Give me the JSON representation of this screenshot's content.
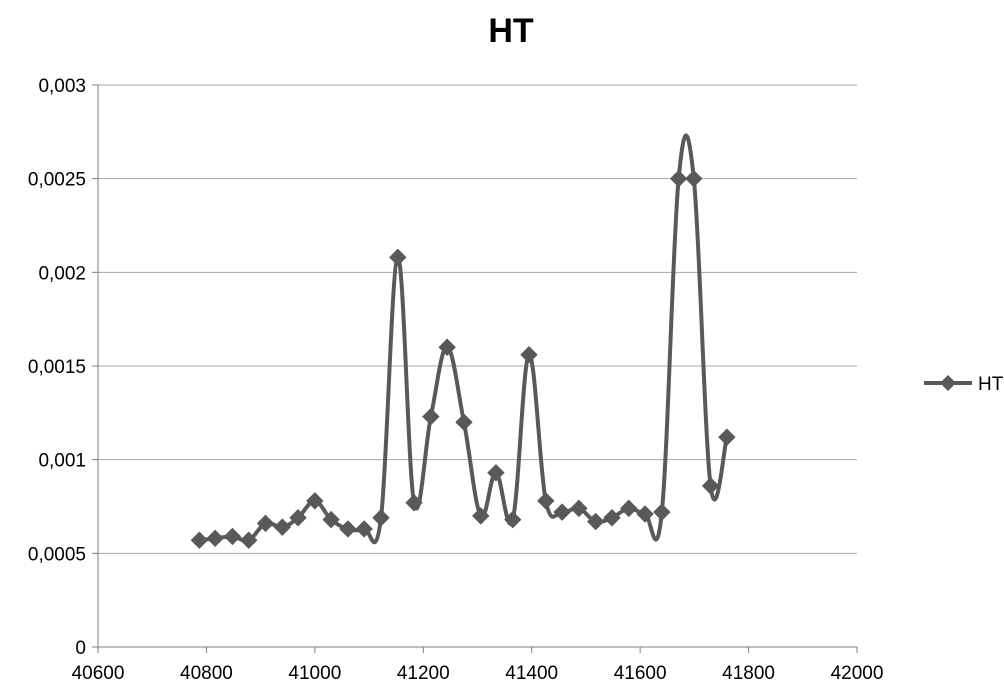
{
  "chart_data": {
    "type": "line",
    "title": "HT",
    "xlabel": "",
    "ylabel": "",
    "xlim": [
      40600,
      42000
    ],
    "ylim": [
      0,
      0.003
    ],
    "x_ticks": [
      40600,
      40800,
      41000,
      41200,
      41400,
      41600,
      41800,
      42000
    ],
    "x_tick_labels": [
      "40600",
      "40800",
      "41000",
      "41200",
      "41400",
      "41600",
      "41800",
      "42000"
    ],
    "y_ticks": [
      0,
      0.0005,
      0.001,
      0.0015,
      0.002,
      0.0025,
      0.003
    ],
    "y_tick_labels": [
      "0",
      "0,0005",
      "0,001",
      "0,0015",
      "0,002",
      "0,0025",
      "0,003"
    ],
    "grid": "horizontal",
    "legend": "right",
    "colors": {
      "series": "#595959",
      "grid": "#a6a6a6",
      "axis": "#7f7f7f"
    },
    "series": [
      {
        "name": "HT",
        "marker": "diamond",
        "smooth": true,
        "x": [
          40787,
          40816,
          40848,
          40878,
          40909,
          40940,
          40969,
          41000,
          41030,
          41061,
          41091,
          41122,
          41153,
          41183,
          41214,
          41244,
          41275,
          41306,
          41334,
          41365,
          41395,
          41426,
          41456,
          41487,
          41518,
          41548,
          41579,
          41609,
          41640,
          41671,
          41699,
          41730,
          41760
        ],
        "y": [
          0.00057,
          0.00058,
          0.00059,
          0.00057,
          0.00066,
          0.00064,
          0.00069,
          0.00078,
          0.00068,
          0.00063,
          0.00063,
          0.00069,
          0.00208,
          0.00077,
          0.00123,
          0.0016,
          0.0012,
          0.0007,
          0.00093,
          0.00068,
          0.00156,
          0.00078,
          0.00072,
          0.00074,
          0.00067,
          0.00069,
          0.00074,
          0.00071,
          0.00072,
          0.0025,
          0.0025,
          0.00086,
          0.00112
        ]
      }
    ]
  }
}
